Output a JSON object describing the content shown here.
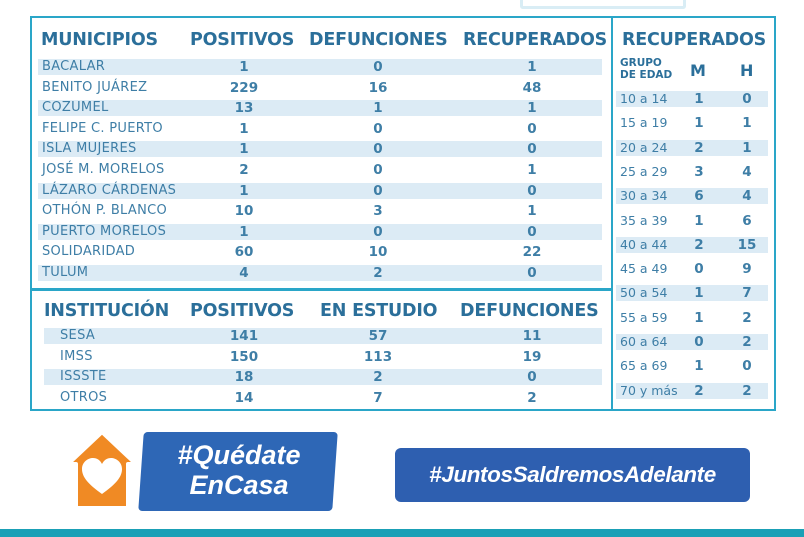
{
  "colors": {
    "border": "#2aa6c8",
    "text": "#3e7ea6",
    "header": "#2b6f9a",
    "row_shade": "#dcebf5",
    "house_orange": "#f08a24",
    "badge_blue": "#2e67b6",
    "bottom_bar": "#1aa0b6"
  },
  "municipios": {
    "headers": [
      "MUNICIPIOS",
      "POSITIVOS",
      "DEFUNCIONES",
      "RECUPERADOS"
    ],
    "rows": [
      {
        "name": "BACALAR",
        "positivos": "1",
        "defunciones": "0",
        "recuperados": "1"
      },
      {
        "name": "BENITO JUÁREZ",
        "positivos": "229",
        "defunciones": "16",
        "recuperados": "48"
      },
      {
        "name": "COZUMEL",
        "positivos": "13",
        "defunciones": "1",
        "recuperados": "1"
      },
      {
        "name": "FELIPE C. PUERTO",
        "positivos": "1",
        "defunciones": "0",
        "recuperados": "0"
      },
      {
        "name": "ISLA MUJERES",
        "positivos": "1",
        "defunciones": "0",
        "recuperados": "0"
      },
      {
        "name": "JOSÉ M. MORELOS",
        "positivos": "2",
        "defunciones": "0",
        "recuperados": "1"
      },
      {
        "name": "LÁZARO CÁRDENAS",
        "positivos": "1",
        "defunciones": "0",
        "recuperados": "0"
      },
      {
        "name": "OTHÓN P. BLANCO",
        "positivos": "10",
        "defunciones": "3",
        "recuperados": "1"
      },
      {
        "name": "PUERTO MORELOS",
        "positivos": "1",
        "defunciones": "0",
        "recuperados": "0"
      },
      {
        "name": "SOLIDARIDAD",
        "positivos": "60",
        "defunciones": "10",
        "recuperados": "22"
      },
      {
        "name": "TULUM",
        "positivos": "4",
        "defunciones": "2",
        "recuperados": "0"
      }
    ]
  },
  "institucion": {
    "headers": [
      "INSTITUCIÓN",
      "POSITIVOS",
      "EN ESTUDIO",
      "DEFUNCIONES"
    ],
    "rows": [
      {
        "name": "SESA",
        "positivos": "141",
        "en_estudio": "57",
        "defunciones": "11"
      },
      {
        "name": "IMSS",
        "positivos": "150",
        "en_estudio": "113",
        "defunciones": "19"
      },
      {
        "name": "ISSSTE",
        "positivos": "18",
        "en_estudio": "2",
        "defunciones": "0"
      },
      {
        "name": "OTROS",
        "positivos": "14",
        "en_estudio": "7",
        "defunciones": "2"
      }
    ]
  },
  "recuperados": {
    "title": "RECUPERADOS",
    "grupo_line1": "GRUPO",
    "grupo_line2": "DE EDAD",
    "m": "M",
    "h": "H",
    "rows": [
      {
        "grupo": "10 a 14",
        "m": "1",
        "h": "0"
      },
      {
        "grupo": "15 a 19",
        "m": "1",
        "h": "1"
      },
      {
        "grupo": "20 a 24",
        "m": "2",
        "h": "1"
      },
      {
        "grupo": "25 a 29",
        "m": "3",
        "h": "4"
      },
      {
        "grupo": "30 a 34",
        "m": "6",
        "h": "4"
      },
      {
        "grupo": "35 a 39",
        "m": "1",
        "h": "6"
      },
      {
        "grupo": "40 a 44",
        "m": "2",
        "h": "15"
      },
      {
        "grupo": "45 a 49",
        "m": "0",
        "h": "9"
      },
      {
        "grupo": "50 a 54",
        "m": "1",
        "h": "7"
      },
      {
        "grupo": "55 a 59",
        "m": "1",
        "h": "2"
      },
      {
        "grupo": "60 a 64",
        "m": "0",
        "h": "2"
      },
      {
        "grupo": "65 a 69",
        "m": "1",
        "h": "0"
      },
      {
        "grupo": "70 y más",
        "m": "2",
        "h": "2"
      }
    ]
  },
  "campaign": {
    "quedate_line1": "#Quédate",
    "quedate_line2": "EnCasa",
    "juntos": "#JuntosSaldremosAdelante"
  }
}
